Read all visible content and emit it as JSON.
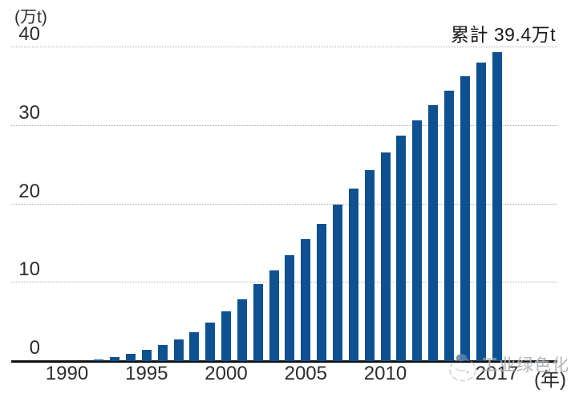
{
  "chart_data": {
    "type": "bar",
    "annotation": "累計 39.4万t",
    "y_axis_unit": "(万t)",
    "x_axis_unit": "(年)",
    "x": [
      1992,
      1993,
      1994,
      1995,
      1996,
      1997,
      1998,
      1999,
      2000,
      2001,
      2002,
      2003,
      2004,
      2005,
      2006,
      2007,
      2008,
      2009,
      2010,
      2011,
      2012,
      2013,
      2014,
      2015,
      2016,
      2017
    ],
    "values": [
      0.2,
      0.5,
      0.9,
      1.4,
      2.0,
      2.8,
      3.7,
      4.9,
      6.3,
      7.9,
      9.8,
      11.6,
      13.5,
      15.5,
      17.5,
      19.9,
      22.0,
      24.3,
      26.6,
      28.7,
      30.7,
      32.6,
      34.5,
      36.3,
      38.1,
      39.4
    ],
    "ylim": [
      0,
      40
    ],
    "y_ticks": [
      0,
      10,
      20,
      30,
      40
    ],
    "x_tick_years": [
      1990,
      1995,
      2000,
      2005,
      2010,
      2017
    ],
    "bar_color": "#0d5191",
    "grid": "horizontal-dotted",
    "legend": "none"
  },
  "watermark": {
    "text": "工业绿色化",
    "icon": "globe-sketch-icon"
  }
}
